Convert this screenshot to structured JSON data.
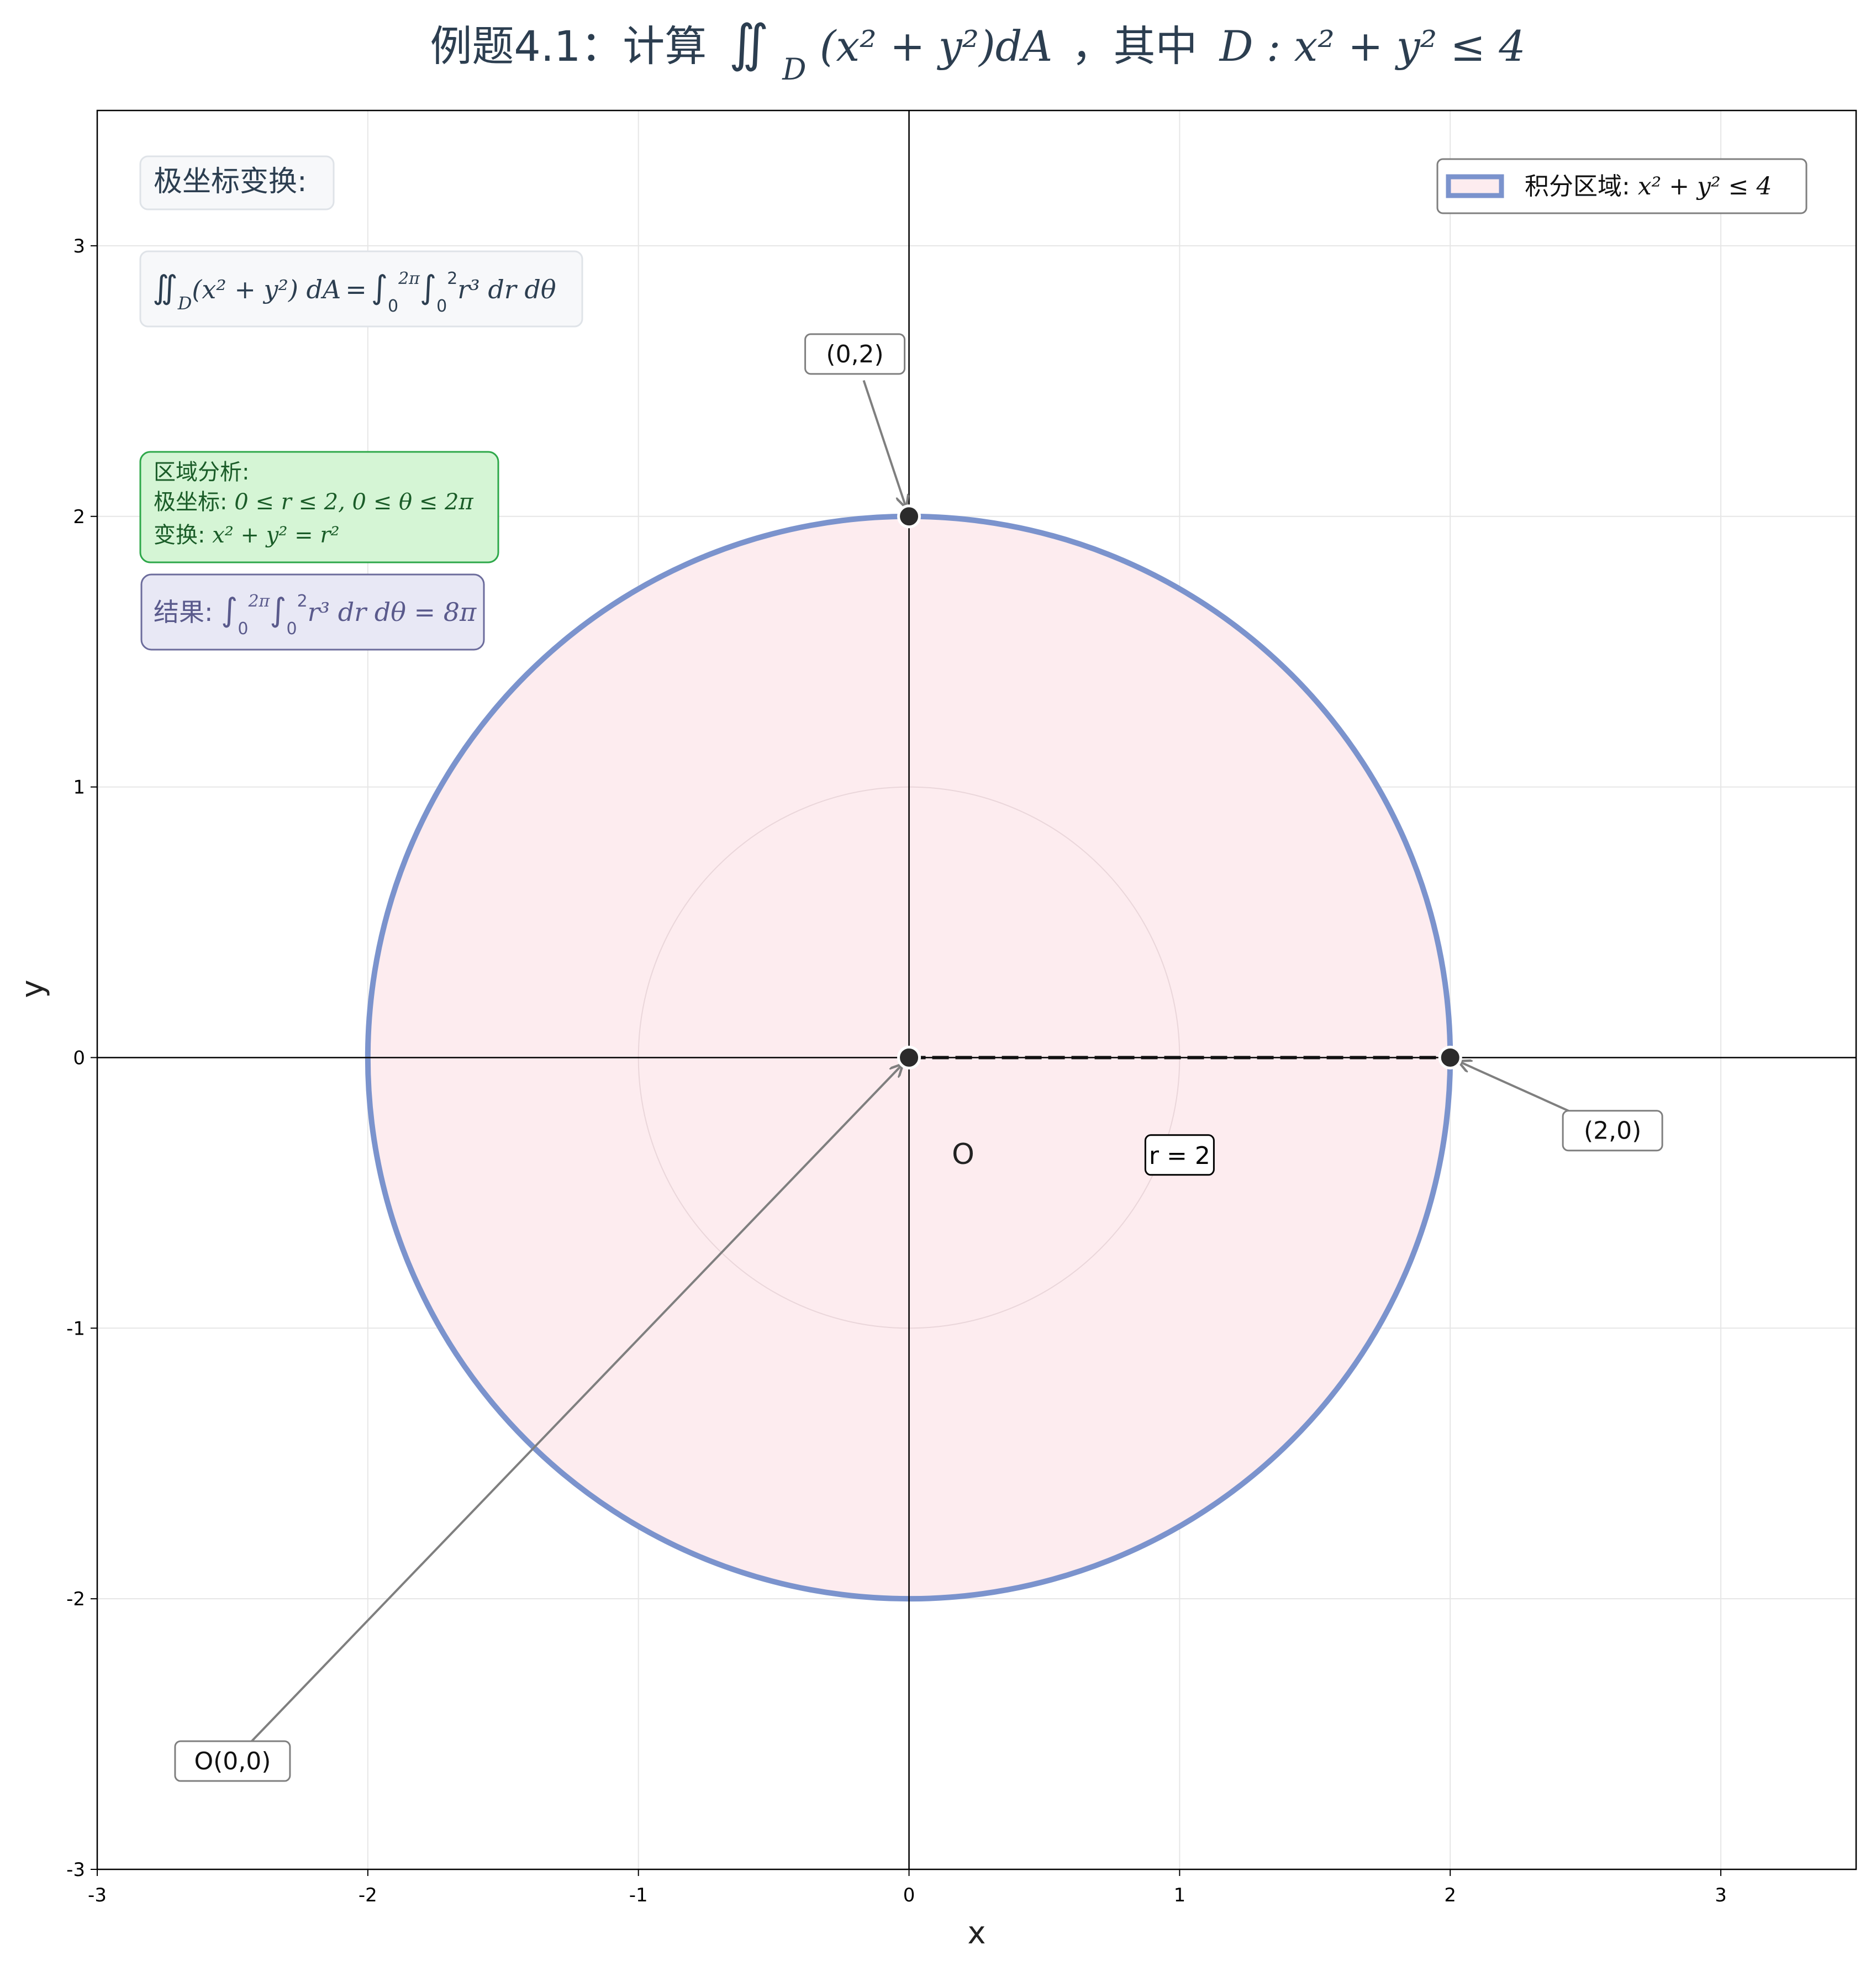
{
  "chart_data": {
    "type": "scatter",
    "title_prefix": "例题4.1：计算",
    "title_integrand": "(x² + y²)dA",
    "title_mid": "，其中",
    "title_region": "D : x² + y² ≤ 4",
    "xlabel": "x",
    "ylabel": "y",
    "xlim": [
      -3,
      3.5
    ],
    "ylim": [
      -3,
      3.5
    ],
    "xticks": [
      -3,
      -2,
      -1,
      0,
      1,
      2,
      3
    ],
    "yticks": [
      -3,
      -2,
      -1,
      0,
      1,
      2,
      3
    ],
    "grid": true,
    "legend_position": "top-right",
    "circle": {
      "cx": 0,
      "cy": 0,
      "r": 2
    },
    "inner_circle": {
      "cx": 0,
      "cy": 0,
      "r": 1
    },
    "legend": {
      "label_prefix": "积分区域: ",
      "label_math": "x² + y² ≤ 4"
    },
    "points": [
      {
        "name": "origin",
        "x": 0,
        "y": 0,
        "label": "O(0,0)",
        "label_pos": [
          -2.5,
          -2.6
        ]
      },
      {
        "name": "point-0-2",
        "x": 0,
        "y": 2,
        "label": "(0,2)",
        "label_pos": [
          -0.2,
          2.6
        ]
      },
      {
        "name": "point-2-0",
        "x": 2,
        "y": 0,
        "label": "(2,0)",
        "label_pos": [
          2.6,
          -0.27
        ]
      }
    ],
    "radius_line": {
      "from": [
        0,
        0
      ],
      "to": [
        2,
        0
      ]
    },
    "origin_text": {
      "text": "O",
      "pos": [
        0.2,
        -0.36
      ]
    },
    "radius_label": {
      "text": "r = 2",
      "pos": [
        1.0,
        -0.36
      ]
    },
    "box_polar": {
      "title": "极坐标变换:"
    },
    "box_analysis": {
      "line1": "区域分析:",
      "line2_prefix": "极坐标: ",
      "line2_math": "0 ≤ r ≤ 2, 0 ≤ θ ≤ 2π",
      "line3_prefix": "变换: ",
      "line3_math": "x² + y² = r²"
    },
    "box_result": {
      "prefix": "结果: ",
      "value": "= 8π"
    }
  },
  "colors": {
    "circle_edge": "#7b93cd",
    "circle_fill": "#fdecef",
    "title": "#2c3e50",
    "analysis_fill": "#d5f5d5",
    "analysis_edge": "#2ea84a",
    "analysis_text": "#1a5c28",
    "result_fill": "#e8e8f5",
    "result_edge": "#6c6c9c",
    "result_text": "#5a5a8c"
  }
}
